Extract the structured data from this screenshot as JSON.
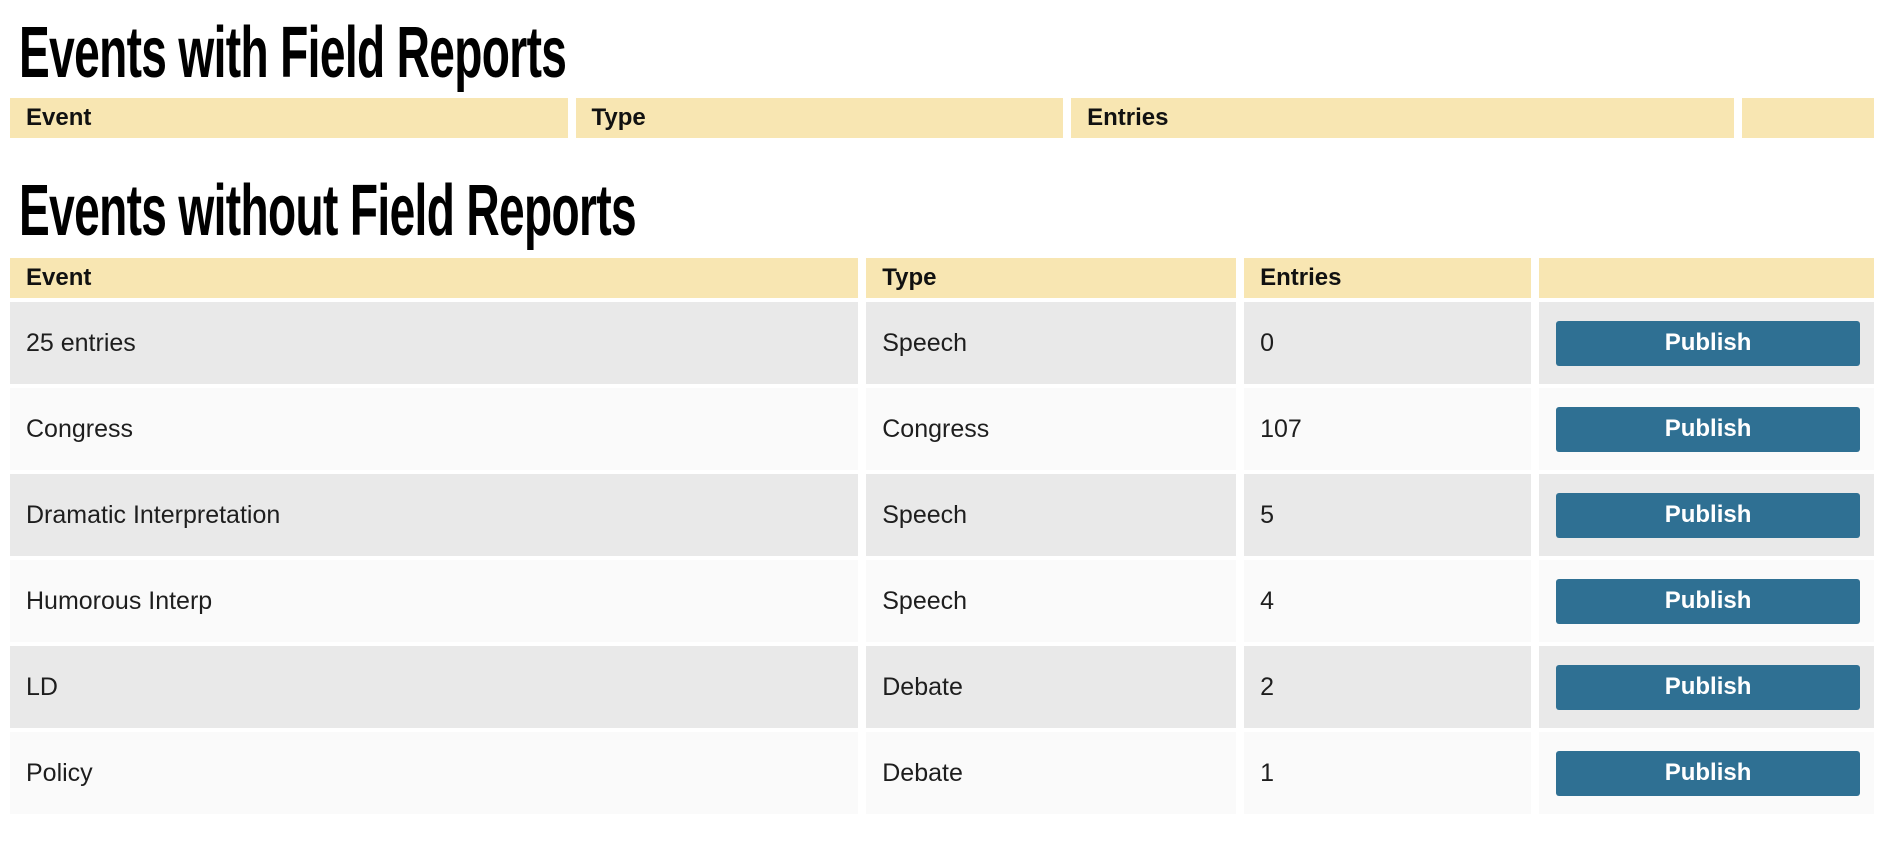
{
  "colors": {
    "header_bg": "#f8e6b2",
    "row_odd": "#e9e9e9",
    "row_even": "#fafafa",
    "button_bg": "#2f7093",
    "button_text": "#ffffff"
  },
  "sections": [
    {
      "title": "Events with Field Reports",
      "columns": {
        "event": "Event",
        "type": "Type",
        "entries": "Entries",
        "action": ""
      },
      "rows": []
    },
    {
      "title": "Events without Field Reports",
      "columns": {
        "event": "Event",
        "type": "Type",
        "entries": "Entries",
        "action": ""
      },
      "rows": [
        {
          "event": "25 entries",
          "type": "Speech",
          "entries": "0",
          "action": "Publish"
        },
        {
          "event": "Congress",
          "type": "Congress",
          "entries": "107",
          "action": "Publish"
        },
        {
          "event": "Dramatic Interpretation",
          "type": "Speech",
          "entries": "5",
          "action": "Publish"
        },
        {
          "event": "Humorous Interp",
          "type": "Speech",
          "entries": "4",
          "action": "Publish"
        },
        {
          "event": "LD",
          "type": "Debate",
          "entries": "2",
          "action": "Publish"
        },
        {
          "event": "Policy",
          "type": "Debate",
          "entries": "1",
          "action": "Publish"
        }
      ]
    }
  ]
}
